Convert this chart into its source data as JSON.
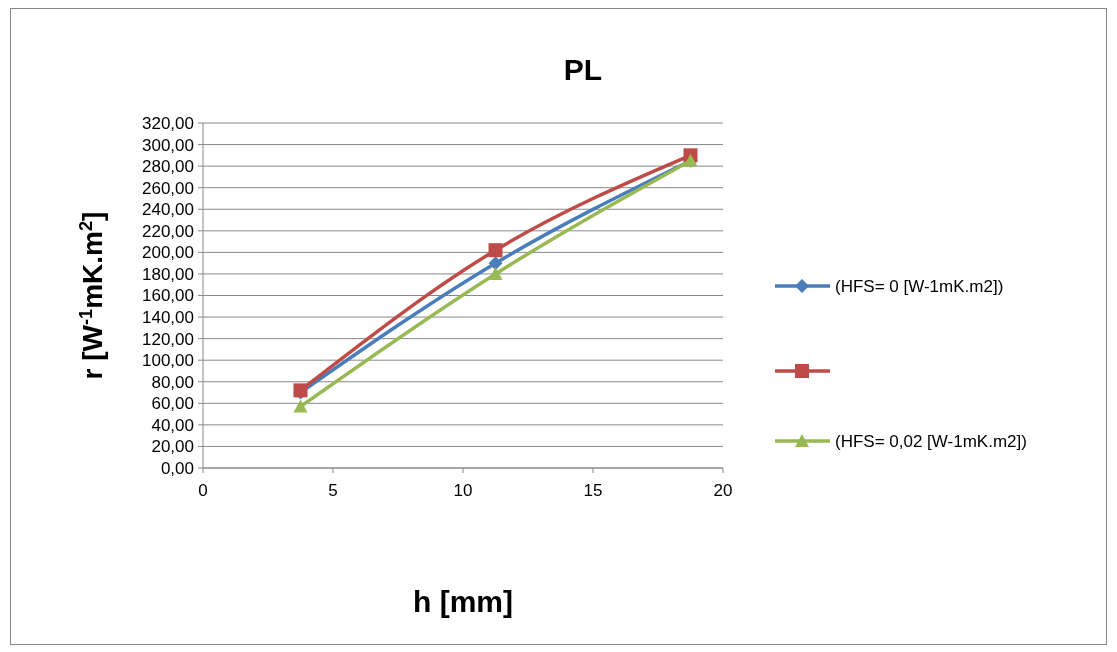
{
  "chart_data": {
    "type": "line",
    "title": "PL",
    "xlabel": "h [mm]",
    "ylabel": "r [W$^{-1}$mK.m$^{2}$]",
    "x": [
      3.75,
      11.25,
      18.75
    ],
    "series": [
      {
        "name": "(HFS= 0 [W-1mK.m2])",
        "color": "#4a7ebb",
        "marker": "diamond",
        "values": [
          70,
          190,
          285
        ]
      },
      {
        "color": "#be4b48",
        "marker": "square",
        "values": [
          72,
          202,
          290
        ]
      },
      {
        "name": "(HFS= 0,02 [W-1mK.m2])",
        "color": "#98b954",
        "marker": "triangle",
        "values": [
          57,
          180,
          285
        ]
      }
    ],
    "xlim": [
      0,
      20
    ],
    "xticks": [
      0,
      5,
      10,
      15,
      20
    ],
    "ylim": [
      0,
      320
    ],
    "yticks": [
      {
        "value": 0,
        "label": "0,00"
      },
      {
        "value": 20,
        "label": "20,00"
      },
      {
        "value": 40,
        "label": "40,00"
      },
      {
        "value": 60,
        "label": "60,00"
      },
      {
        "value": 80,
        "label": "80,00"
      },
      {
        "value": 100,
        "label": "100,00"
      },
      {
        "value": 120,
        "label": "120,00"
      },
      {
        "value": 140,
        "label": "140,00"
      },
      {
        "value": 160,
        "label": "160,00"
      },
      {
        "value": 180,
        "label": "180,00"
      },
      {
        "value": 200,
        "label": "200,00"
      },
      {
        "value": 220,
        "label": "220,00"
      },
      {
        "value": 240,
        "label": "240,00"
      },
      {
        "value": 260,
        "label": "260,00"
      },
      {
        "value": 280,
        "label": "280,00"
      },
      {
        "value": 300,
        "label": "300,00"
      },
      {
        "value": 320,
        "label": "320,00"
      }
    ],
    "grid": "y",
    "legend": "right",
    "line_style": "solid"
  }
}
